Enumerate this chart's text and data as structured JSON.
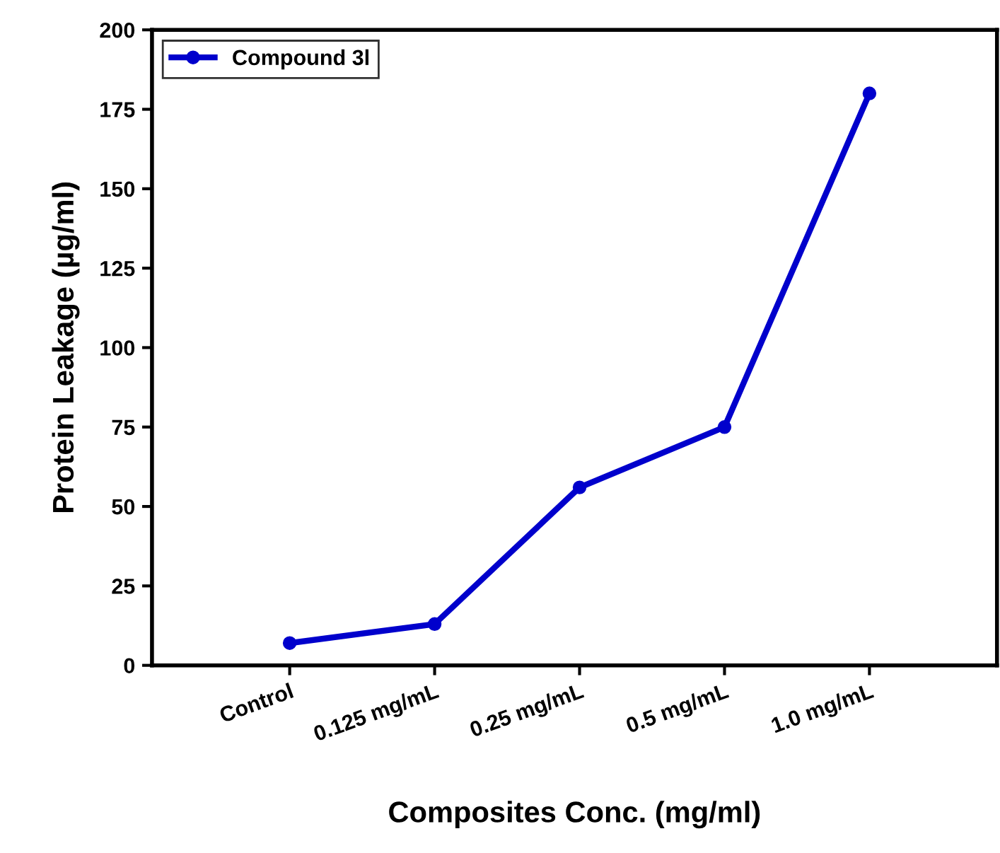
{
  "chart_data": {
    "type": "line",
    "xlabel": "Composites Conc. (mg/ml)",
    "ylabel": "Protein Leakage (µg/ml)",
    "categories": [
      "Control",
      "0.125 mg/mL",
      "0.25 mg/mL",
      "0.5 mg/mL",
      "1.0 mg/mL"
    ],
    "series": [
      {
        "name": "Compound 3l",
        "color": "#0000cc",
        "values": [
          7,
          13,
          56,
          75,
          180
        ]
      }
    ],
    "ylim": [
      0,
      200
    ],
    "yticks": [
      0,
      25,
      50,
      75,
      100,
      125,
      150,
      175,
      200
    ],
    "marker": "circle",
    "line_style": "solid",
    "legend": "top left",
    "grid": false
  }
}
